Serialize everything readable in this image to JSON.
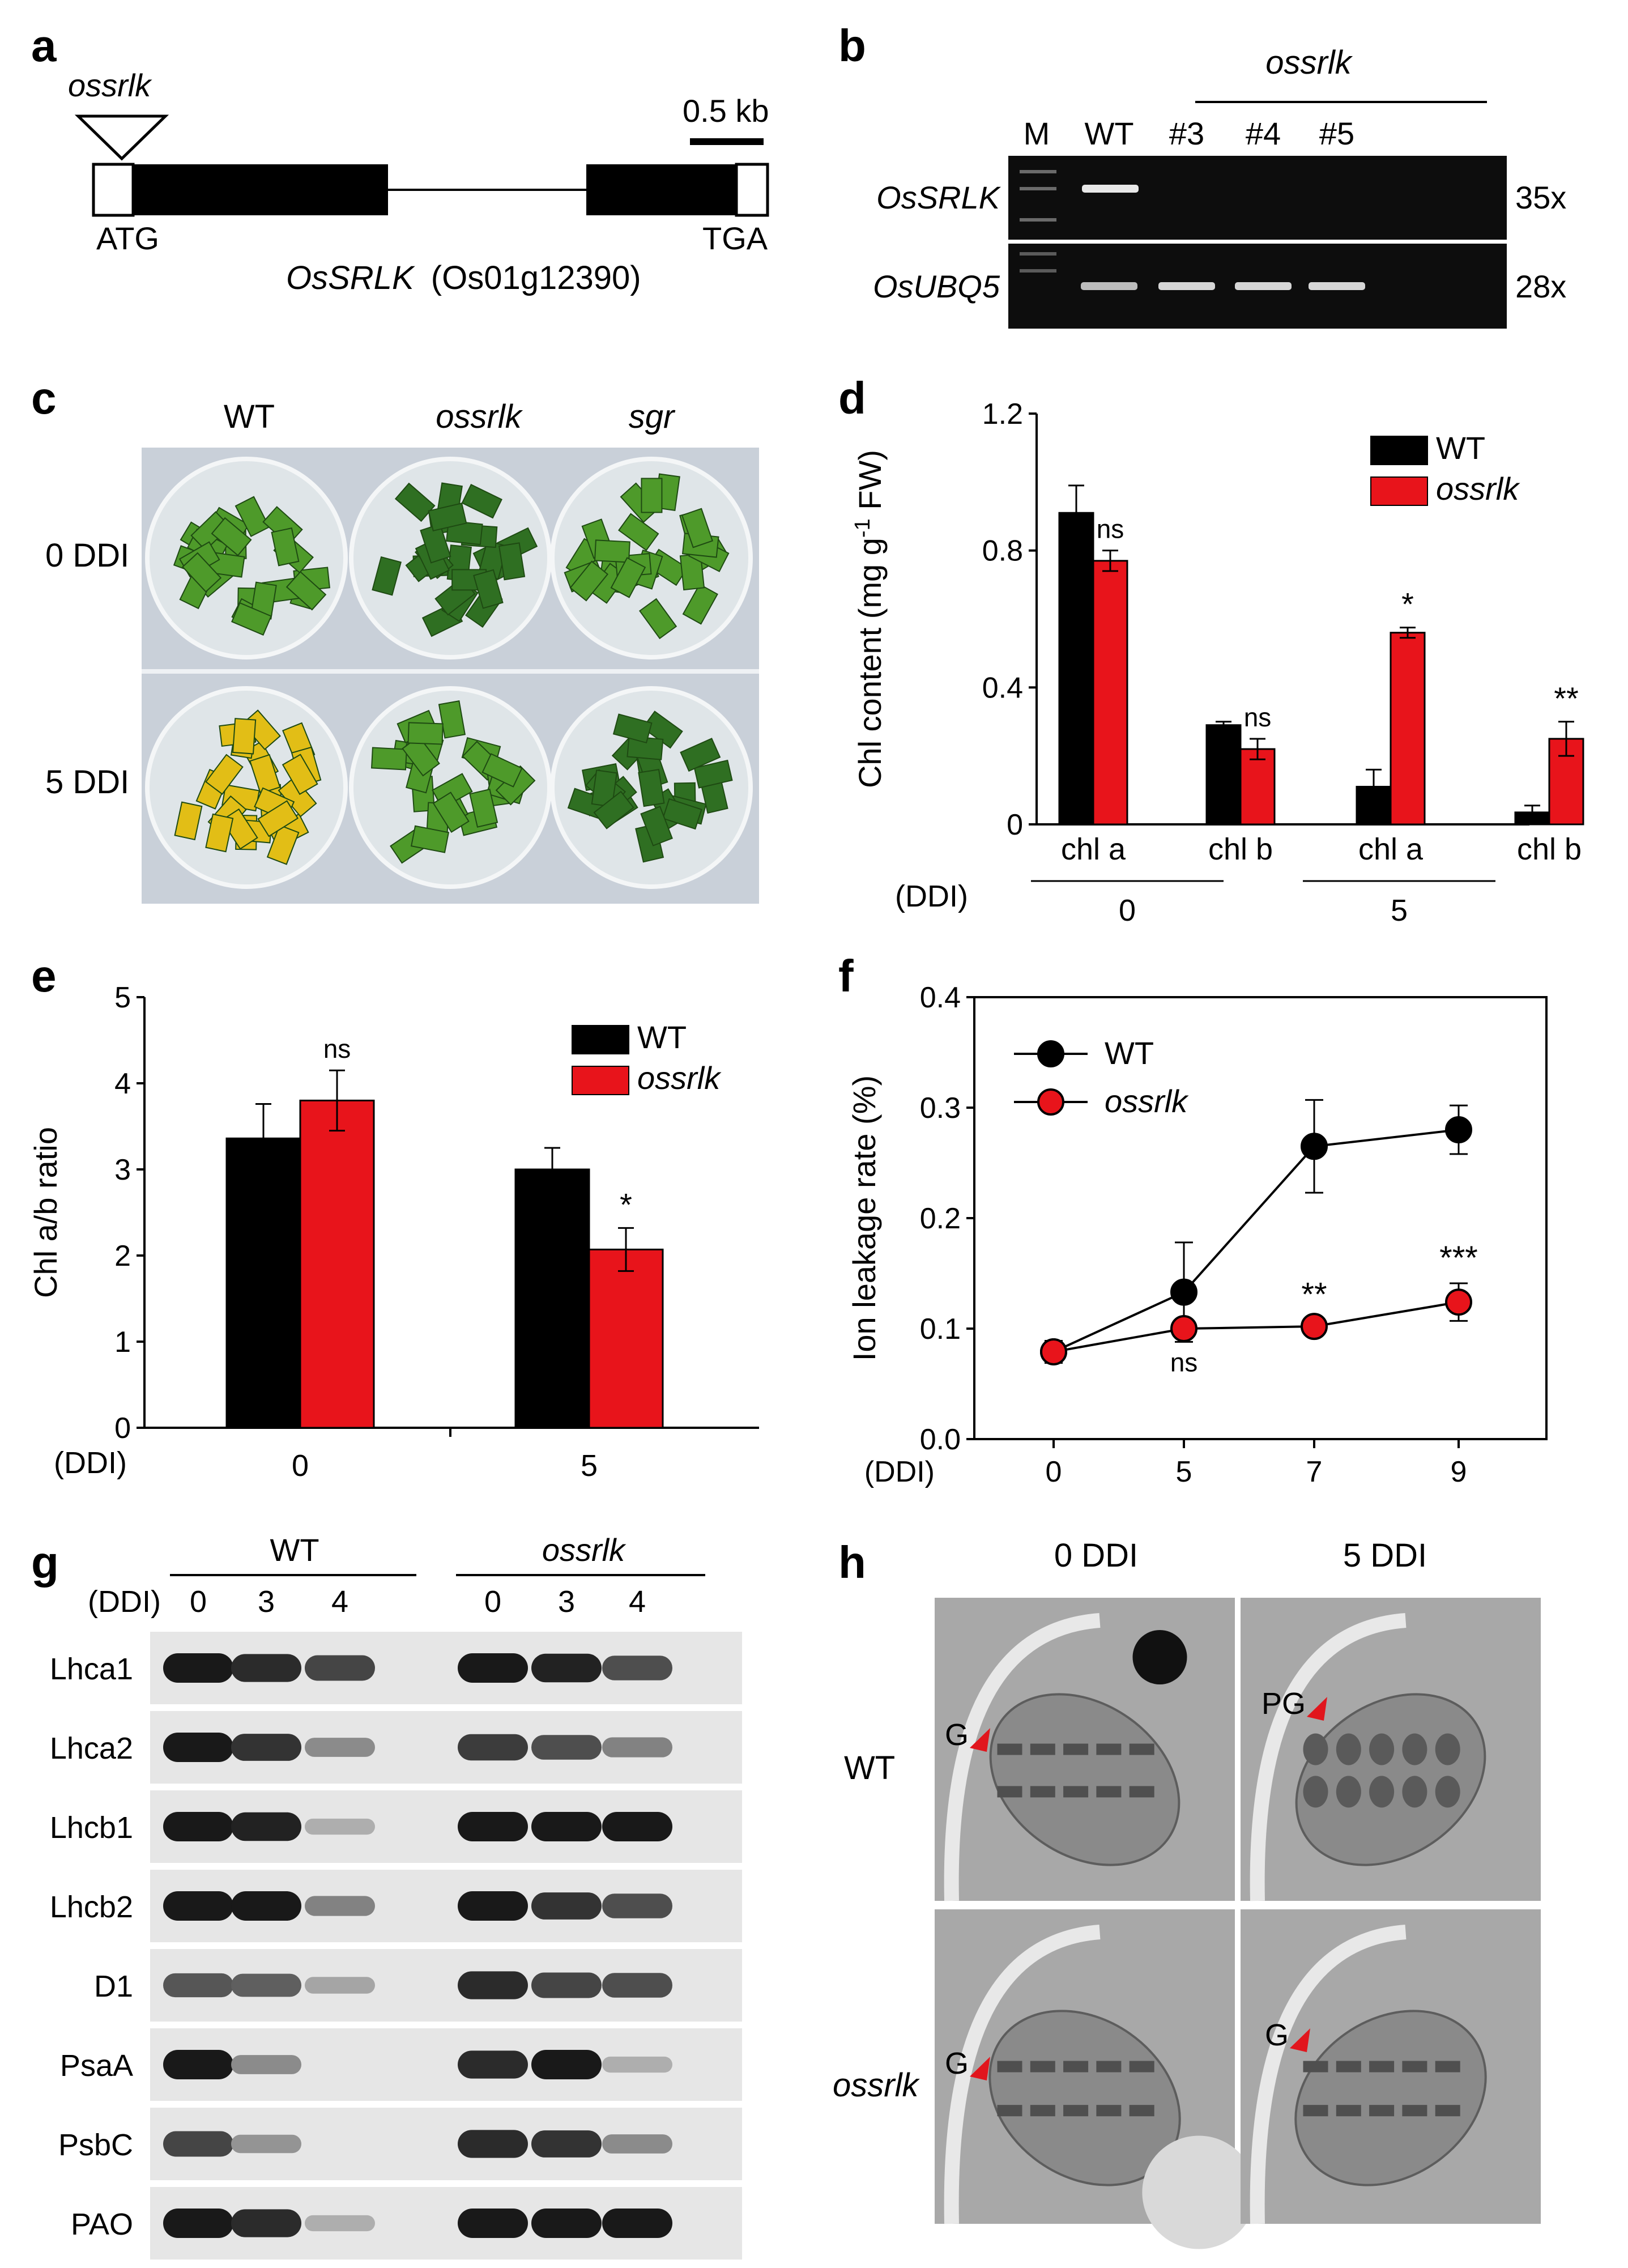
{
  "panels": {
    "a": {
      "letter": "a",
      "insert_label": "ossrlk",
      "scale_label": "0.5 kb",
      "start_codon": "ATG",
      "stop_codon": "TGA",
      "gene_name": "OsSRLK",
      "gene_id": "(Os01g12390)"
    },
    "b": {
      "letter": "b",
      "group_label": "ossrlk",
      "lanes": [
        "M",
        "WT",
        "#3",
        "#4",
        "#5"
      ],
      "rows": [
        {
          "gene": "OsSRLK",
          "cycles": "35x"
        },
        {
          "gene": "OsUBQ5",
          "cycles": "28x"
        }
      ]
    },
    "c": {
      "letter": "c",
      "columns": [
        "WT",
        "ossrlk",
        "sgr"
      ],
      "rows": [
        "0 DDI",
        "5 DDI"
      ],
      "colors": {
        "green": "#4e9a2a",
        "yellow": "#e2be16",
        "dark_green": "#2f6f22"
      }
    },
    "g": {
      "letter": "g",
      "groups": [
        "WT",
        "ossrlk"
      ],
      "ddi_label": "(DDI)",
      "timepoints": [
        "0",
        "3",
        "4",
        "0",
        "3",
        "4"
      ],
      "proteins": [
        {
          "name": "Lhca1",
          "levels": [
            1.0,
            0.9,
            0.75,
            1.0,
            0.95,
            0.7
          ]
        },
        {
          "name": "Lhca2",
          "levels": [
            1.0,
            0.85,
            0.35,
            0.8,
            0.7,
            0.4
          ]
        },
        {
          "name": "Lhcb1",
          "levels": [
            1.0,
            0.95,
            0.15,
            1.0,
            1.0,
            1.0
          ]
        },
        {
          "name": "Lhcb2",
          "levels": [
            1.0,
            1.0,
            0.4,
            1.0,
            0.85,
            0.7
          ]
        },
        {
          "name": "D1",
          "levels": [
            0.65,
            0.6,
            0.2,
            0.9,
            0.75,
            0.7
          ]
        },
        {
          "name": "PsaA",
          "levels": [
            1.0,
            0.35,
            0.0,
            0.9,
            1.0,
            0.15
          ]
        },
        {
          "name": "PsbC",
          "levels": [
            0.75,
            0.3,
            0.0,
            0.9,
            0.85,
            0.35
          ]
        },
        {
          "name": "PAO",
          "levels": [
            1.0,
            0.9,
            0.15,
            1.0,
            1.0,
            1.0
          ]
        }
      ]
    },
    "h": {
      "letter": "h",
      "columns": [
        "0 DDI",
        "5 DDI"
      ],
      "rows": [
        "WT",
        "ossrlk"
      ],
      "arrow_labels": [
        "G",
        "PG",
        "G",
        "G"
      ]
    }
  },
  "chart_data": [
    {
      "panel": "d",
      "type": "bar",
      "letter": "d",
      "ylabel": "Chl content (mg g⁻¹ FW)",
      "ylabel_parts": {
        "main": "Chl content (mg g",
        "sup": "-1",
        "tail": " FW)"
      },
      "ylim": [
        0,
        1.2
      ],
      "yticks": [
        "0",
        "0.4",
        "0.8",
        "1.2"
      ],
      "categories": [
        "chl a",
        "chl b",
        "chl a",
        "chl b"
      ],
      "groups": [
        {
          "label": "0",
          "categories": [
            0,
            1
          ]
        },
        {
          "label": "5",
          "categories": [
            2,
            3
          ]
        }
      ],
      "group_axis_label": "(DDI)",
      "series": [
        {
          "name": "WT",
          "color": "#000000",
          "values": [
            0.91,
            0.29,
            0.11,
            0.035
          ],
          "errors": [
            0.08,
            0.01,
            0.05,
            0.02
          ]
        },
        {
          "name": "ossrlk",
          "color": "#e8141b",
          "values": [
            0.77,
            0.22,
            0.56,
            0.25
          ],
          "errors": [
            0.03,
            0.03,
            0.015,
            0.05
          ]
        }
      ],
      "significance": [
        "ns",
        "ns",
        "*",
        "**"
      ],
      "legend": "top-right"
    },
    {
      "panel": "e",
      "type": "bar",
      "letter": "e",
      "ylabel": "Chl a/b ratio",
      "ylim": [
        0,
        5
      ],
      "yticks": [
        "0",
        "1",
        "2",
        "3",
        "4",
        "5"
      ],
      "categories": [
        "0",
        "5"
      ],
      "group_axis_label": "(DDI)",
      "series": [
        {
          "name": "WT",
          "color": "#000000",
          "values": [
            3.36,
            3.0
          ],
          "errors": [
            0.4,
            0.25
          ]
        },
        {
          "name": "ossrlk",
          "color": "#e8141b",
          "values": [
            3.8,
            2.07
          ],
          "errors": [
            0.35,
            0.25
          ]
        }
      ],
      "significance": [
        "ns",
        "*"
      ],
      "legend": "top-right"
    },
    {
      "panel": "f",
      "type": "line",
      "letter": "f",
      "ylabel": "Ion leakage rate (%)",
      "ylim": [
        0,
        0.4
      ],
      "yticks": [
        "0.0",
        "0.1",
        "0.2",
        "0.3",
        "0.4"
      ],
      "x": [
        "0",
        "5",
        "7",
        "9"
      ],
      "x_axis_label": "(DDI)",
      "series": [
        {
          "name": "WT",
          "color": "#000000",
          "values": [
            0.079,
            0.133,
            0.265,
            0.28
          ],
          "errors": [
            0.01,
            0.045,
            0.042,
            0.022
          ]
        },
        {
          "name": "ossrlk",
          "color": "#e8141b",
          "values": [
            0.079,
            0.1,
            0.102,
            0.124
          ],
          "errors": [
            0.01,
            0.008,
            0.006,
            0.017
          ]
        }
      ],
      "significance": [
        "",
        "ns",
        "**",
        "***"
      ],
      "legend": "top-left"
    }
  ]
}
